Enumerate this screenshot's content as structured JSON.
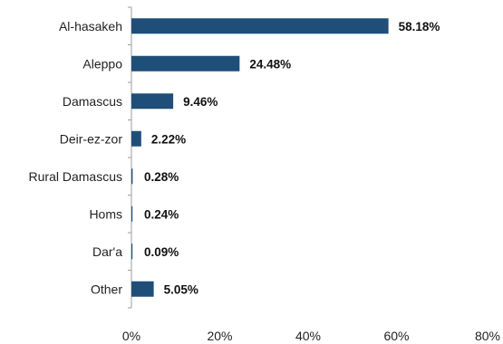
{
  "chart_data": {
    "type": "bar",
    "orientation": "horizontal",
    "categories": [
      "Al-hasakeh",
      "Aleppo",
      "Damascus",
      "Deir-ez-zor",
      "Rural Damascus",
      "Homs",
      "Dar'a",
      "Other"
    ],
    "values": [
      58.18,
      24.48,
      9.46,
      2.22,
      0.28,
      0.24,
      0.09,
      5.05
    ],
    "data_labels": [
      "58.18%",
      "24.48%",
      "9.46%",
      "2.22%",
      "0.28%",
      "0.24%",
      "0.09%",
      "5.05%"
    ],
    "xticks": [
      0,
      20,
      40,
      60,
      80
    ],
    "xtick_labels": [
      "0%",
      "20%",
      "40%",
      "60%",
      "80%"
    ],
    "xlim": [
      0,
      80
    ],
    "title": "",
    "xlabel": "",
    "ylabel": "",
    "grid": false,
    "legend": "none",
    "bar_color": "#1f4e79",
    "axis_color": "#9e9e9e"
  }
}
